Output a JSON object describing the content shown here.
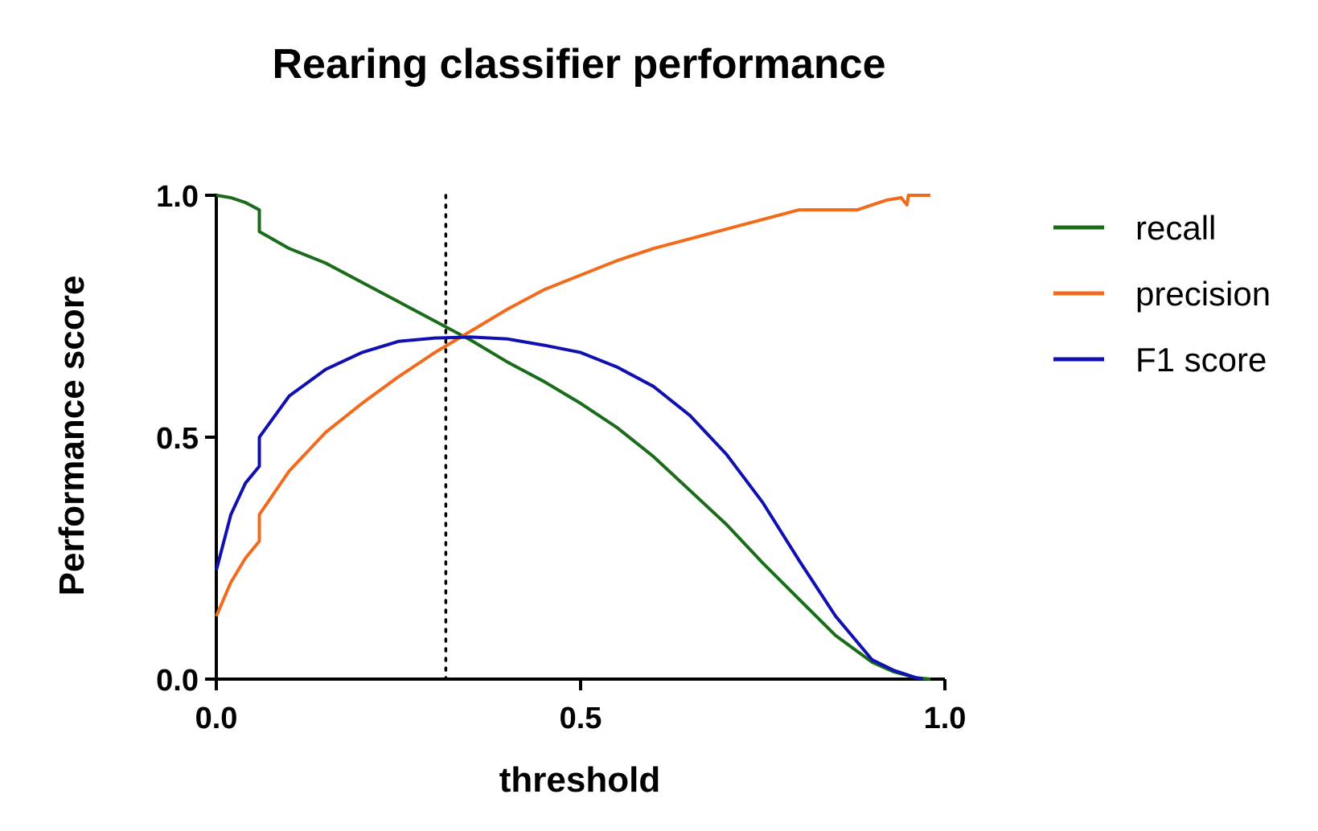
{
  "chart_data": {
    "type": "line",
    "title": "Rearing classifier performance",
    "xlabel": "threshold",
    "ylabel": "Performance score",
    "xlim": [
      0.0,
      1.0
    ],
    "ylim": [
      0.0,
      1.0
    ],
    "x_ticks": [
      0.0,
      0.5,
      1.0
    ],
    "x_tick_labels": [
      "0.0",
      "0.5",
      "1.0"
    ],
    "y_ticks": [
      0.0,
      0.5,
      1.0
    ],
    "y_tick_labels": [
      "0.0",
      "0.5",
      "1.0"
    ],
    "grid": false,
    "legend_position": "right",
    "vline_x": 0.315,
    "vline_style": "dotted",
    "series": [
      {
        "name": "recall",
        "color": "#1a6b1a",
        "x": [
          0.0,
          0.02,
          0.04,
          0.059,
          0.0591,
          0.1,
          0.15,
          0.2,
          0.25,
          0.3,
          0.35,
          0.4,
          0.45,
          0.5,
          0.55,
          0.6,
          0.65,
          0.7,
          0.75,
          0.8,
          0.85,
          0.9,
          0.93,
          0.96,
          0.98
        ],
        "y": [
          1.0,
          0.995,
          0.985,
          0.97,
          0.925,
          0.89,
          0.86,
          0.82,
          0.78,
          0.74,
          0.7,
          0.655,
          0.615,
          0.57,
          0.52,
          0.46,
          0.39,
          0.32,
          0.24,
          0.165,
          0.09,
          0.035,
          0.015,
          0.003,
          0.0
        ]
      },
      {
        "name": "precision",
        "color": "#f26b1d",
        "x": [
          0.0,
          0.02,
          0.04,
          0.059,
          0.0591,
          0.1,
          0.15,
          0.2,
          0.25,
          0.3,
          0.35,
          0.4,
          0.45,
          0.5,
          0.55,
          0.6,
          0.65,
          0.7,
          0.75,
          0.8,
          0.85,
          0.88,
          0.9,
          0.92,
          0.94,
          0.948,
          0.95,
          0.97,
          0.98
        ],
        "y": [
          0.13,
          0.2,
          0.25,
          0.285,
          0.34,
          0.43,
          0.51,
          0.57,
          0.625,
          0.675,
          0.72,
          0.765,
          0.805,
          0.835,
          0.865,
          0.89,
          0.91,
          0.93,
          0.95,
          0.97,
          0.97,
          0.97,
          0.98,
          0.99,
          0.995,
          0.98,
          1.0,
          1.0,
          1.0
        ]
      },
      {
        "name": "F1 score",
        "color": "#1010b0",
        "x": [
          0.0,
          0.02,
          0.04,
          0.059,
          0.0591,
          0.1,
          0.15,
          0.2,
          0.25,
          0.3,
          0.35,
          0.4,
          0.45,
          0.5,
          0.55,
          0.6,
          0.65,
          0.7,
          0.75,
          0.8,
          0.85,
          0.9,
          0.93,
          0.96,
          0.97
        ],
        "y": [
          0.225,
          0.34,
          0.405,
          0.44,
          0.5,
          0.585,
          0.64,
          0.675,
          0.698,
          0.705,
          0.707,
          0.703,
          0.69,
          0.675,
          0.645,
          0.605,
          0.545,
          0.465,
          0.365,
          0.245,
          0.13,
          0.04,
          0.018,
          0.003,
          0.0
        ]
      }
    ]
  }
}
